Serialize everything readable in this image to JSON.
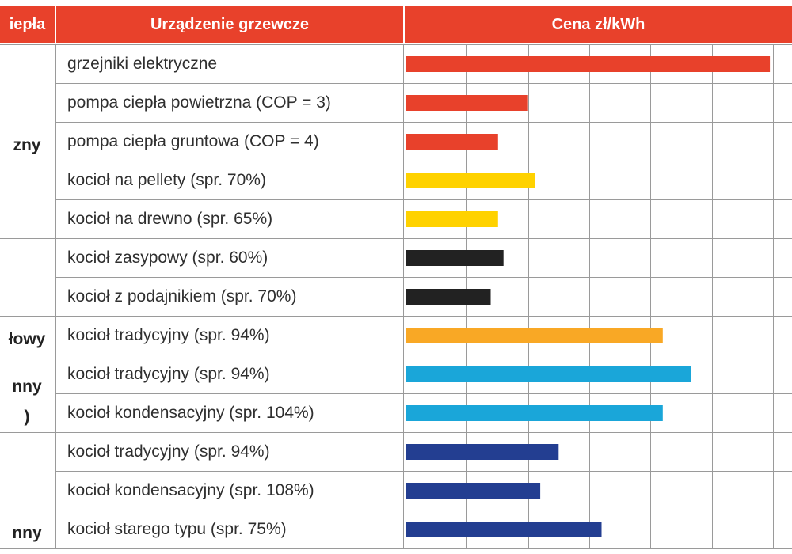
{
  "chart_data": {
    "type": "bar",
    "orientation": "horizontal",
    "headers": {
      "source": "iepła",
      "device": "Urządzenie grzewcze",
      "price": "Cena zł/kWh"
    },
    "groups": [
      {
        "label_lines": [
          "zny"
        ],
        "rows": [
          0,
          1,
          2
        ]
      },
      {
        "label_lines": [],
        "rows": [
          3,
          4
        ]
      },
      {
        "label_lines": [],
        "rows": [
          5,
          6
        ]
      },
      {
        "label_lines": [
          "łowy"
        ],
        "rows": [
          7
        ]
      },
      {
        "label_lines": [
          "nny",
          ")"
        ],
        "rows": [
          8,
          9
        ]
      },
      {
        "label_lines": [
          "nny"
        ],
        "rows": [
          10,
          11,
          12
        ]
      }
    ],
    "categories": [
      "grzejniki elektryczne",
      "pompa ciepła powietrzna (COP = 3)",
      "pompa ciepła gruntowa (COP = 4)",
      "kocioł na pellety (spr. 70%)",
      "kocioł na drewno (spr. 65%)",
      "kocioł zasypowy (spr. 60%)",
      "kocioł z podajnikiem (spr. 70%)",
      "kocioł tradycyjny (spr. 94%)",
      "kocioł tradycyjny (spr. 94%)",
      "kocioł kondensacyjny (spr. 104%)",
      "kocioł tradycyjny (spr. 94%)",
      "kocioł kondensacyjny (spr. 108%)",
      "kocioł starego typu (spr. 75%)"
    ],
    "values": [
      0.595,
      0.2,
      0.151,
      0.211,
      0.151,
      0.16,
      0.139,
      0.42,
      0.466,
      0.42,
      0.25,
      0.22,
      0.32
    ],
    "bar_colors": [
      "#e8412b",
      "#e8412b",
      "#e8412b",
      "#ffd200",
      "#ffd200",
      "#222222",
      "#222222",
      "#f9a825",
      "#1aa6d9",
      "#1aa6d9",
      "#233e91",
      "#233e91",
      "#233e91"
    ],
    "xlim": [
      0,
      0.6
    ],
    "grid_step": 0.1,
    "grid": true
  },
  "colors": {
    "header_bg": "#e8412b",
    "header_text": "#ffffff",
    "grid": "#9a9a9a"
  }
}
